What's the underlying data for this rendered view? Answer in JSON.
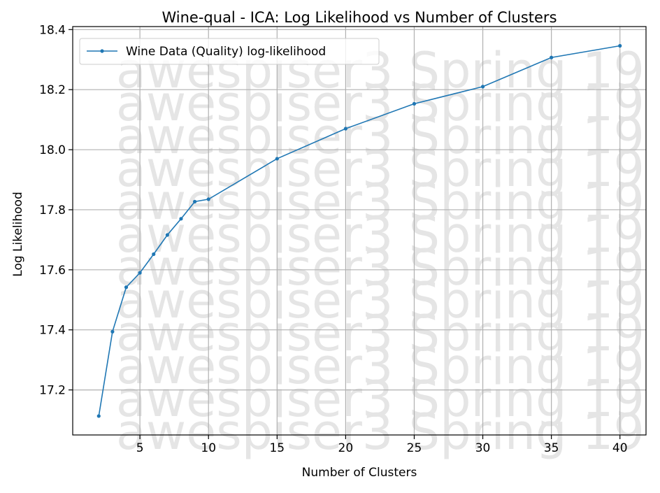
{
  "chart_data": {
    "type": "line",
    "title": "Wine-qual - ICA: Log Likelihood vs Number of Clusters",
    "xlabel": "Number of Clusters",
    "ylabel": "Log Likelihood",
    "xlim": [
      0.1,
      41.9
    ],
    "ylim": [
      17.05,
      18.41
    ],
    "xticks": [
      5,
      10,
      15,
      20,
      25,
      30,
      35,
      40
    ],
    "xtick_labels": [
      "5",
      "10",
      "15",
      "20",
      "25",
      "30",
      "35",
      "40"
    ],
    "yticks": [
      17.2,
      17.4,
      17.6,
      17.8,
      18.0,
      18.2,
      18.4
    ],
    "ytick_labels": [
      "17.2",
      "17.4",
      "17.6",
      "17.8",
      "18.0",
      "18.2",
      "18.4"
    ],
    "grid": true,
    "legend_position": "top-left",
    "series": [
      {
        "name": "Wine Data (Quality) log-likelihood",
        "color": "#1f77b4",
        "marker": "dot",
        "x": [
          2,
          3,
          4,
          5,
          6,
          7,
          8,
          9,
          10,
          15,
          20,
          25,
          30,
          35,
          40
        ],
        "y": [
          17.113,
          17.394,
          17.542,
          17.59,
          17.652,
          17.716,
          17.77,
          17.827,
          17.835,
          17.97,
          18.07,
          18.153,
          18.21,
          18.307,
          18.346
        ]
      }
    ],
    "watermark": {
      "text": "awespiser3 Spring 19",
      "color": "#e5e5e5"
    }
  }
}
